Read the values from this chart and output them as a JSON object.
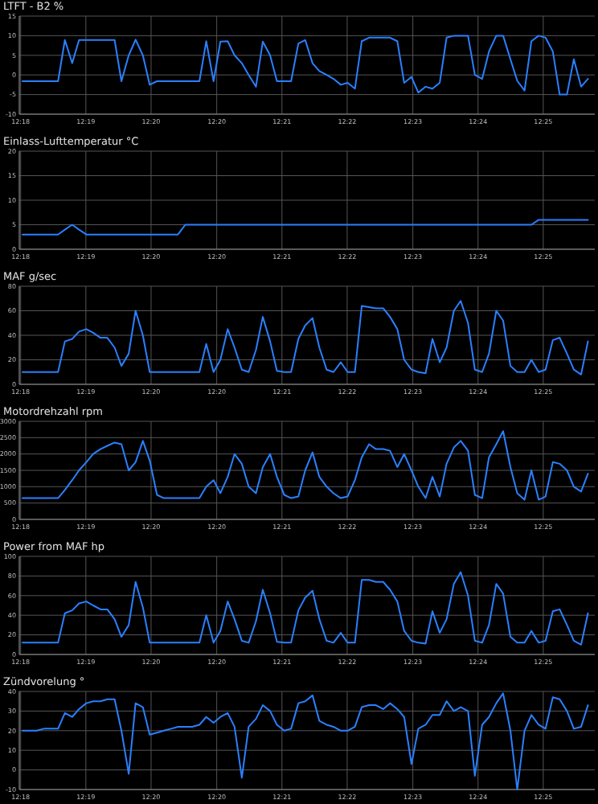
{
  "chart_data": [
    {
      "type": "line",
      "title": "LTFT - B2 %",
      "color": "#2a80ff",
      "grid": true,
      "xlim": [
        12.2964,
        12.4226
      ],
      "ylim": [
        -10,
        15
      ],
      "yticks": [
        -10,
        -5,
        0,
        5,
        10,
        15
      ],
      "xticks": [
        {
          "value": 12.2967,
          "label": "12:18"
        },
        {
          "value": 12.311,
          "label": "12:19"
        },
        {
          "value": 12.3253,
          "label": "12:20"
        },
        {
          "value": 12.3397,
          "label": "12:20"
        },
        {
          "value": 12.354,
          "label": "12:21"
        },
        {
          "value": 12.3683,
          "label": "12:22"
        },
        {
          "value": 12.3827,
          "label": "12:23"
        },
        {
          "value": 12.397,
          "label": "12:24"
        },
        {
          "value": 12.4113,
          "label": "12:25"
        }
      ],
      "x": [
        12.2971,
        12.2987,
        12.3002,
        12.3018,
        12.3033,
        12.3049,
        12.3064,
        12.308,
        12.3095,
        12.3111,
        12.3126,
        12.3142,
        12.3157,
        12.3173,
        12.3188,
        12.3204,
        12.3219,
        12.3235,
        12.325,
        12.3266,
        12.3281,
        12.3297,
        12.3312,
        12.3328,
        12.3343,
        12.3359,
        12.3374,
        12.339,
        12.3405,
        12.3421,
        12.3436,
        12.3452,
        12.3467,
        12.3483,
        12.3498,
        12.3514,
        12.3529,
        12.3545,
        12.356,
        12.3576,
        12.3591,
        12.3607,
        12.3622,
        12.3638,
        12.3653,
        12.3669,
        12.3684,
        12.37,
        12.3715,
        12.3731,
        12.3746,
        12.3762,
        12.3777,
        12.3793,
        12.3808,
        12.3824,
        12.3839,
        12.3855,
        12.387,
        12.3886,
        12.3901,
        12.3917,
        12.3932,
        12.3948,
        12.3963,
        12.3979,
        12.3994,
        12.401,
        12.4025,
        12.4041,
        12.4056,
        12.4072,
        12.4087,
        12.4103,
        12.4118,
        12.4134,
        12.4149,
        12.4165,
        12.418,
        12.4196,
        12.4211
      ],
      "values": [
        -1.6,
        -1.6,
        -1.6,
        -1.6,
        -1.6,
        -1.6,
        8.9,
        3,
        8.9,
        8.9,
        8.9,
        8.9,
        8.9,
        8.9,
        -1.6,
        5,
        9,
        5,
        -2.5,
        -1.6,
        -1.6,
        -1.6,
        -1.6,
        -1.6,
        -1.6,
        -1.6,
        8.6,
        -1.6,
        8.5,
        8.6,
        5,
        3,
        0,
        -3,
        8.5,
        5,
        -1.6,
        -1.6,
        -1.6,
        8,
        8.9,
        3,
        1,
        0,
        -1,
        -2.5,
        -2,
        -3.5,
        8.6,
        9.5,
        9.5,
        9.5,
        9.5,
        8.6,
        -2,
        -0.5,
        -4.5,
        -3,
        -3.5,
        -2,
        9.5,
        10,
        10,
        10,
        0,
        -1,
        6,
        10,
        10,
        4,
        -1.5,
        -4,
        8.6,
        10,
        9.5,
        6,
        -5,
        -5,
        4,
        -3,
        -1
      ]
    },
    {
      "type": "line",
      "title": "Einlass-Lufttemperatur °C",
      "color": "#2a80ff",
      "grid": true,
      "xlim": [
        12.2964,
        12.4226
      ],
      "ylim": [
        0,
        20
      ],
      "yticks": [
        0,
        5,
        10,
        15,
        20
      ],
      "xticks": [
        {
          "value": 12.2967,
          "label": "12:18"
        },
        {
          "value": 12.311,
          "label": "12:19"
        },
        {
          "value": 12.3253,
          "label": "12:20"
        },
        {
          "value": 12.3397,
          "label": "12:20"
        },
        {
          "value": 12.354,
          "label": "12:21"
        },
        {
          "value": 12.3683,
          "label": "12:22"
        },
        {
          "value": 12.3827,
          "label": "12:23"
        },
        {
          "value": 12.397,
          "label": "12:24"
        },
        {
          "value": 12.4113,
          "label": "12:25"
        }
      ],
      "x": [
        12.2971,
        12.2987,
        12.3002,
        12.3018,
        12.3033,
        12.3049,
        12.3064,
        12.308,
        12.3095,
        12.3111,
        12.3126,
        12.3142,
        12.3157,
        12.3173,
        12.3188,
        12.3204,
        12.3219,
        12.3235,
        12.325,
        12.3266,
        12.3281,
        12.3297,
        12.3312,
        12.3328,
        12.3343,
        12.3359,
        12.3374,
        12.339,
        12.3405,
        12.3421,
        12.3436,
        12.3452,
        12.3467,
        12.3483,
        12.3498,
        12.3514,
        12.3529,
        12.3545,
        12.356,
        12.3576,
        12.3591,
        12.3607,
        12.3622,
        12.3638,
        12.3653,
        12.3669,
        12.3684,
        12.37,
        12.3715,
        12.3731,
        12.3746,
        12.3762,
        12.3777,
        12.3793,
        12.3808,
        12.3824,
        12.3839,
        12.3855,
        12.387,
        12.3886,
        12.3901,
        12.3917,
        12.3932,
        12.3948,
        12.3963,
        12.3979,
        12.3994,
        12.401,
        12.4025,
        12.4041,
        12.4056,
        12.4072,
        12.4087,
        12.4103,
        12.4118,
        12.4134,
        12.4149,
        12.4165,
        12.418,
        12.4196,
        12.4211
      ],
      "values": [
        3,
        3,
        3,
        3,
        3,
        3,
        4,
        5,
        4,
        3,
        3,
        3,
        3,
        3,
        3,
        3,
        3,
        3,
        3,
        3,
        3,
        3,
        3,
        5,
        5,
        5,
        5,
        5,
        5,
        5,
        5,
        5,
        5,
        5,
        5,
        5,
        5,
        5,
        5,
        5,
        5,
        5,
        5,
        5,
        5,
        5,
        5,
        5,
        5,
        5,
        5,
        5,
        5,
        5,
        5,
        5,
        5,
        5,
        5,
        5,
        5,
        5,
        5,
        5,
        5,
        5,
        5,
        5,
        5,
        5,
        5,
        5,
        5,
        6,
        6,
        6,
        6,
        6,
        6,
        6,
        6
      ]
    },
    {
      "type": "line",
      "title": "MAF g/sec",
      "color": "#2a80ff",
      "grid": true,
      "xlim": [
        12.2964,
        12.4226
      ],
      "ylim": [
        0,
        80
      ],
      "yticks": [
        0,
        20,
        40,
        60,
        80
      ],
      "xticks": [
        {
          "value": 12.2967,
          "label": "12:18"
        },
        {
          "value": 12.311,
          "label": "12:19"
        },
        {
          "value": 12.3253,
          "label": "12:20"
        },
        {
          "value": 12.3397,
          "label": "12:20"
        },
        {
          "value": 12.354,
          "label": "12:21"
        },
        {
          "value": 12.3683,
          "label": "12:22"
        },
        {
          "value": 12.3827,
          "label": "12:23"
        },
        {
          "value": 12.397,
          "label": "12:24"
        },
        {
          "value": 12.4113,
          "label": "12:25"
        }
      ],
      "x": [
        12.2971,
        12.2987,
        12.3002,
        12.3018,
        12.3033,
        12.3049,
        12.3064,
        12.308,
        12.3095,
        12.3111,
        12.3126,
        12.3142,
        12.3157,
        12.3173,
        12.3188,
        12.3204,
        12.3219,
        12.3235,
        12.325,
        12.3266,
        12.3281,
        12.3297,
        12.3312,
        12.3328,
        12.3343,
        12.3359,
        12.3374,
        12.339,
        12.3405,
        12.3421,
        12.3436,
        12.3452,
        12.3467,
        12.3483,
        12.3498,
        12.3514,
        12.3529,
        12.3545,
        12.356,
        12.3576,
        12.3591,
        12.3607,
        12.3622,
        12.3638,
        12.3653,
        12.3669,
        12.3684,
        12.37,
        12.3715,
        12.3731,
        12.3746,
        12.3762,
        12.3777,
        12.3793,
        12.3808,
        12.3824,
        12.3839,
        12.3855,
        12.387,
        12.3886,
        12.3901,
        12.3917,
        12.3932,
        12.3948,
        12.3963,
        12.3979,
        12.3994,
        12.401,
        12.4025,
        12.4041,
        12.4056,
        12.4072,
        12.4087,
        12.4103,
        12.4118,
        12.4134,
        12.4149,
        12.4165,
        12.418,
        12.4196,
        12.4211
      ],
      "values": [
        10,
        10,
        10,
        10,
        10,
        10,
        35,
        37,
        43,
        45,
        42,
        38,
        38,
        30,
        15,
        25,
        60,
        40,
        10,
        10,
        10,
        10,
        10,
        10,
        10,
        10,
        33,
        10,
        20,
        45,
        30,
        12,
        10,
        28,
        55,
        35,
        11,
        10,
        10,
        37,
        48,
        54,
        30,
        12,
        10,
        18,
        10,
        10,
        64,
        63,
        62,
        62,
        55,
        45,
        20,
        12,
        10,
        9,
        37,
        18,
        30,
        60,
        68,
        50,
        12,
        10,
        25,
        60,
        52,
        15,
        10,
        10,
        20,
        10,
        12,
        36,
        38,
        25,
        12,
        8,
        35
      ]
    },
    {
      "type": "line",
      "title": "Motordrehzahl rpm",
      "color": "#2a80ff",
      "grid": true,
      "xlim": [
        12.2964,
        12.4226
      ],
      "ylim": [
        0,
        3000
      ],
      "yticks": [
        0,
        500,
        1000,
        1500,
        2000,
        2500,
        3000
      ],
      "xticks": [
        {
          "value": 12.2967,
          "label": "12:18"
        },
        {
          "value": 12.311,
          "label": "12:19"
        },
        {
          "value": 12.3253,
          "label": "12:20"
        },
        {
          "value": 12.3397,
          "label": "12:20"
        },
        {
          "value": 12.354,
          "label": "12:21"
        },
        {
          "value": 12.3683,
          "label": "12:22"
        },
        {
          "value": 12.3827,
          "label": "12:23"
        },
        {
          "value": 12.397,
          "label": "12:24"
        },
        {
          "value": 12.4113,
          "label": "12:25"
        }
      ],
      "x": [
        12.2971,
        12.2987,
        12.3002,
        12.3018,
        12.3033,
        12.3049,
        12.3064,
        12.308,
        12.3095,
        12.3111,
        12.3126,
        12.3142,
        12.3157,
        12.3173,
        12.3188,
        12.3204,
        12.3219,
        12.3235,
        12.325,
        12.3266,
        12.3281,
        12.3297,
        12.3312,
        12.3328,
        12.3343,
        12.3359,
        12.3374,
        12.339,
        12.3405,
        12.3421,
        12.3436,
        12.3452,
        12.3467,
        12.3483,
        12.3498,
        12.3514,
        12.3529,
        12.3545,
        12.356,
        12.3576,
        12.3591,
        12.3607,
        12.3622,
        12.3638,
        12.3653,
        12.3669,
        12.3684,
        12.37,
        12.3715,
        12.3731,
        12.3746,
        12.3762,
        12.3777,
        12.3793,
        12.3808,
        12.3824,
        12.3839,
        12.3855,
        12.387,
        12.3886,
        12.3901,
        12.3917,
        12.3932,
        12.3948,
        12.3963,
        12.3979,
        12.3994,
        12.401,
        12.4025,
        12.4041,
        12.4056,
        12.4072,
        12.4087,
        12.4103,
        12.4118,
        12.4134,
        12.4149,
        12.4165,
        12.418,
        12.4196,
        12.4211
      ],
      "values": [
        650,
        650,
        650,
        650,
        650,
        650,
        900,
        1200,
        1500,
        1750,
        2000,
        2150,
        2250,
        2350,
        2300,
        1500,
        1750,
        2400,
        1800,
        750,
        650,
        650,
        650,
        650,
        650,
        650,
        1000,
        1200,
        800,
        1300,
        2000,
        1700,
        1000,
        800,
        1600,
        2000,
        1300,
        750,
        650,
        700,
        1500,
        2050,
        1300,
        1000,
        800,
        650,
        700,
        1200,
        1900,
        2300,
        2150,
        2150,
        2100,
        1600,
        2000,
        1500,
        1000,
        650,
        1300,
        700,
        1700,
        2200,
        2400,
        2100,
        750,
        650,
        1900,
        2300,
        2700,
        1600,
        800,
        600,
        1500,
        600,
        700,
        1750,
        1700,
        1500,
        1000,
        850,
        1400
      ]
    },
    {
      "type": "line",
      "title": "Power from MAF hp",
      "color": "#2a80ff",
      "grid": true,
      "xlim": [
        12.2964,
        12.4226
      ],
      "ylim": [
        0,
        100
      ],
      "yticks": [
        0,
        20,
        40,
        60,
        80,
        100
      ],
      "xticks": [
        {
          "value": 12.2967,
          "label": "12:18"
        },
        {
          "value": 12.311,
          "label": "12:19"
        },
        {
          "value": 12.3253,
          "label": "12:20"
        },
        {
          "value": 12.3397,
          "label": "12:20"
        },
        {
          "value": 12.354,
          "label": "12:21"
        },
        {
          "value": 12.3683,
          "label": "12:22"
        },
        {
          "value": 12.3827,
          "label": "12:23"
        },
        {
          "value": 12.397,
          "label": "12:24"
        },
        {
          "value": 12.4113,
          "label": "12:25"
        }
      ],
      "x": [
        12.2971,
        12.2987,
        12.3002,
        12.3018,
        12.3033,
        12.3049,
        12.3064,
        12.308,
        12.3095,
        12.3111,
        12.3126,
        12.3142,
        12.3157,
        12.3173,
        12.3188,
        12.3204,
        12.3219,
        12.3235,
        12.325,
        12.3266,
        12.3281,
        12.3297,
        12.3312,
        12.3328,
        12.3343,
        12.3359,
        12.3374,
        12.339,
        12.3405,
        12.3421,
        12.3436,
        12.3452,
        12.3467,
        12.3483,
        12.3498,
        12.3514,
        12.3529,
        12.3545,
        12.356,
        12.3576,
        12.3591,
        12.3607,
        12.3622,
        12.3638,
        12.3653,
        12.3669,
        12.3684,
        12.37,
        12.3715,
        12.3731,
        12.3746,
        12.3762,
        12.3777,
        12.3793,
        12.3808,
        12.3824,
        12.3839,
        12.3855,
        12.387,
        12.3886,
        12.3901,
        12.3917,
        12.3932,
        12.3948,
        12.3963,
        12.3979,
        12.3994,
        12.401,
        12.4025,
        12.4041,
        12.4056,
        12.4072,
        12.4087,
        12.4103,
        12.4118,
        12.4134,
        12.4149,
        12.4165,
        12.418,
        12.4196,
        12.4211
      ],
      "values": [
        12,
        12,
        12,
        12,
        12,
        12,
        42,
        45,
        52,
        54,
        50,
        46,
        46,
        36,
        18,
        30,
        74,
        48,
        12,
        12,
        12,
        12,
        12,
        12,
        12,
        12,
        40,
        12,
        24,
        54,
        36,
        14,
        12,
        34,
        66,
        42,
        13,
        12,
        12,
        45,
        58,
        65,
        36,
        14,
        12,
        22,
        12,
        12,
        76,
        76,
        74,
        74,
        66,
        54,
        24,
        14,
        12,
        11,
        44,
        22,
        36,
        72,
        84,
        60,
        14,
        12,
        30,
        72,
        62,
        18,
        12,
        12,
        24,
        12,
        14,
        44,
        46,
        30,
        14,
        10,
        42
      ]
    },
    {
      "type": "line",
      "title": "Zündvorelung °",
      "color": "#2a80ff",
      "grid": true,
      "xlim": [
        12.2964,
        12.4226
      ],
      "ylim": [
        -10,
        40
      ],
      "yticks": [
        -10,
        0,
        10,
        20,
        30,
        40
      ],
      "xticks": [
        {
          "value": 12.2967,
          "label": "12:18"
        },
        {
          "value": 12.311,
          "label": "12:19"
        },
        {
          "value": 12.3253,
          "label": "12:20"
        },
        {
          "value": 12.3397,
          "label": "12:20"
        },
        {
          "value": 12.354,
          "label": "12:21"
        },
        {
          "value": 12.3683,
          "label": "12:22"
        },
        {
          "value": 12.3827,
          "label": "12:23"
        },
        {
          "value": 12.397,
          "label": "12:24"
        },
        {
          "value": 12.4113,
          "label": "12:25"
        }
      ],
      "x": [
        12.2971,
        12.2987,
        12.3002,
        12.3018,
        12.3033,
        12.3049,
        12.3064,
        12.308,
        12.3095,
        12.3111,
        12.3126,
        12.3142,
        12.3157,
        12.3173,
        12.3188,
        12.3204,
        12.3219,
        12.3235,
        12.325,
        12.3266,
        12.3281,
        12.3297,
        12.3312,
        12.3328,
        12.3343,
        12.3359,
        12.3374,
        12.339,
        12.3405,
        12.3421,
        12.3436,
        12.3452,
        12.3467,
        12.3483,
        12.3498,
        12.3514,
        12.3529,
        12.3545,
        12.356,
        12.3576,
        12.3591,
        12.3607,
        12.3622,
        12.3638,
        12.3653,
        12.3669,
        12.3684,
        12.37,
        12.3715,
        12.3731,
        12.3746,
        12.3762,
        12.3777,
        12.3793,
        12.3808,
        12.3824,
        12.3839,
        12.3855,
        12.387,
        12.3886,
        12.3901,
        12.3917,
        12.3932,
        12.3948,
        12.3963,
        12.3979,
        12.3994,
        12.401,
        12.4025,
        12.4041,
        12.4056,
        12.4072,
        12.4087,
        12.4103,
        12.4118,
        12.4134,
        12.4149,
        12.4165,
        12.418,
        12.4196,
        12.4211
      ],
      "values": [
        20,
        20,
        20,
        21,
        21,
        21,
        29,
        27,
        31,
        34,
        35,
        35,
        36,
        36,
        20,
        -2,
        34,
        32,
        18,
        19,
        20,
        21,
        22,
        22,
        22,
        23,
        27,
        24,
        27,
        29,
        22,
        -4,
        22,
        26,
        33,
        30,
        23,
        20,
        21,
        34,
        35,
        38,
        25,
        23,
        22,
        20,
        20,
        22,
        32,
        33,
        33,
        31,
        34,
        31,
        27,
        3,
        21,
        23,
        28,
        28,
        35,
        30,
        32,
        30,
        -3,
        23,
        27,
        34,
        39,
        20,
        -10,
        20,
        28,
        23,
        21,
        37,
        36,
        30,
        21,
        22,
        33
      ]
    }
  ]
}
